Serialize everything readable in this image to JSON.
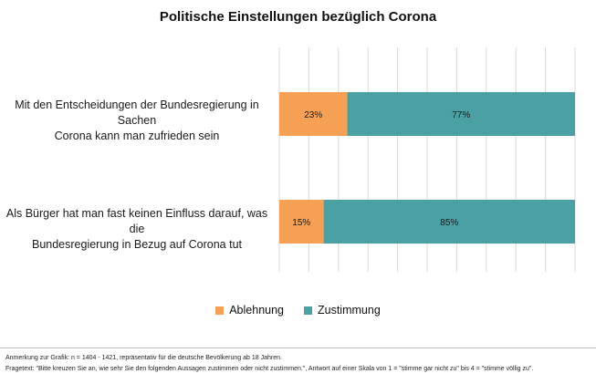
{
  "title": "Politische Einstellungen bezüglich Corona",
  "legend": [
    {
      "label": "Ablehnung",
      "color": "#F5A055"
    },
    {
      "label": "Zustimmung",
      "color": "#4AA0A3"
    }
  ],
  "chart_data": {
    "type": "bar",
    "orientation": "horizontal",
    "stacked": true,
    "normalized": true,
    "categories": [
      "Mit den Entscheidungen der Bundesregierung in Sachen Corona kann man zufrieden sein",
      "Als Bürger hat man fast keinen Einfluss darauf, was die Bundesregierung in Bezug auf Corona tut"
    ],
    "category_lines": [
      [
        "Mit den Entscheidungen der Bundesregierung in Sachen",
        "Corona kann man zufrieden sein"
      ],
      [
        "Als Bürger hat man fast keinen Einfluss darauf, was die",
        "Bundesregierung in Bezug auf Corona tut"
      ]
    ],
    "series": [
      {
        "name": "Ablehnung",
        "values": [
          23,
          15
        ],
        "labels": [
          "23%",
          "15%"
        ],
        "color": "#F5A055"
      },
      {
        "name": "Zustimmung",
        "values": [
          77,
          85
        ],
        "labels": [
          "77%",
          "85%"
        ],
        "color": "#4AA0A3"
      }
    ],
    "xlim": [
      0,
      100
    ],
    "grid": true,
    "legend_position": "bottom"
  },
  "notes": [
    "Anmerkung zur Grafik: n = 1404 - 1421, repräsentativ für die deutsche Bevölkerung ab 18 Jahren.",
    "Fragetext: \"Bitte kreuzen Sie an, wie sehr Sie den folgenden Aussagen zustimmen oder nicht zustimmen.\", Antwort auf einer Skala von 1 = \"stimme gar nicht zu\" bis 4 = \"stimme völlig zu\"."
  ]
}
